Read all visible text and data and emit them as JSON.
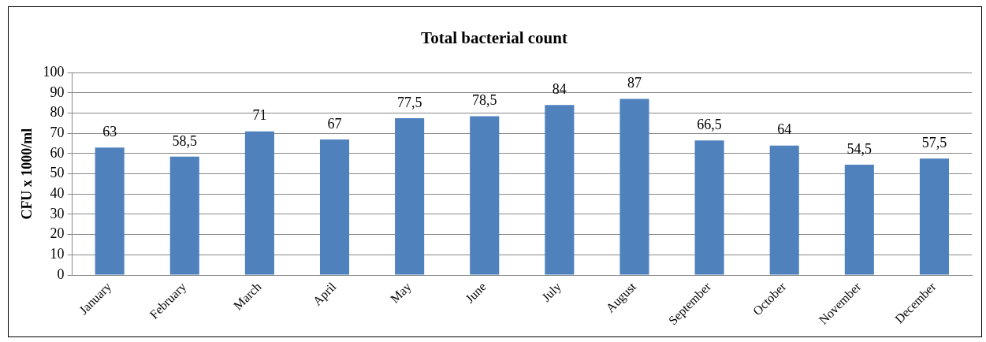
{
  "chart_data": {
    "type": "bar",
    "title": "Total bacterial count",
    "ylabel": "CFU x 1000/ml",
    "categories": [
      "January",
      "February",
      "March",
      "April",
      "May",
      "June",
      "July",
      "August",
      "September",
      "October",
      "November",
      "December"
    ],
    "values": [
      63,
      58.5,
      71,
      67,
      77.5,
      78.5,
      84,
      87,
      66.5,
      64,
      54.5,
      57.5
    ],
    "value_labels": [
      "63",
      "58,5",
      "71",
      "67",
      "77,5",
      "78,5",
      "84",
      "87",
      "66,5",
      "64",
      "54,5",
      "57,5"
    ],
    "color": "#4f81bd",
    "ylim": [
      0,
      100
    ],
    "yticks": [
      0,
      10,
      20,
      30,
      40,
      50,
      60,
      70,
      80,
      90,
      100
    ],
    "grid": "y",
    "legend": false
  }
}
